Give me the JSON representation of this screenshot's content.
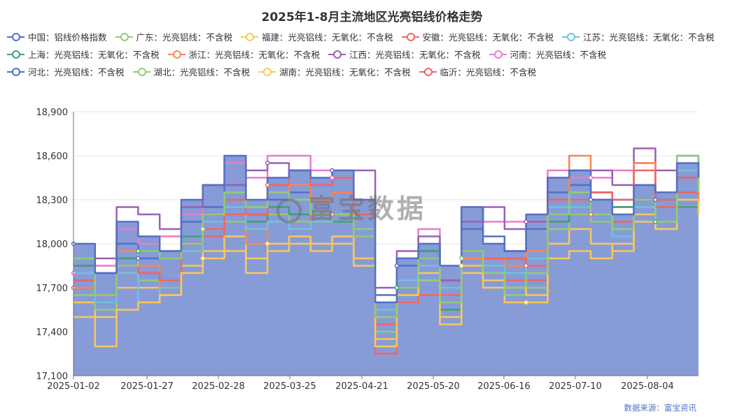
{
  "chart_data": {
    "type": "line",
    "title": "2025年1-8月主流地区光亮铝线价格走势",
    "source": "数据来源：富宝资讯",
    "watermark": "富宝数据",
    "ylim": [
      17100,
      18900
    ],
    "yticks": [
      17100,
      17400,
      17700,
      18000,
      18300,
      18600,
      18900
    ],
    "ytick_labels": [
      "17,100",
      "17,400",
      "17,700",
      "18,000",
      "18,300",
      "18,600",
      "18,900"
    ],
    "xtick_labels": [
      "2025-01-02",
      "2025-01-27",
      "2025-02-28",
      "2025-03-25",
      "2025-04-21",
      "2025-05-20",
      "2025-06-16",
      "2025-07-10",
      "2025-08-04"
    ],
    "legend_position": "top",
    "grid": true,
    "n_points": 30,
    "series": [
      {
        "name": "中国：铝线价格指数",
        "color": "#5470c6",
        "area": true,
        "values": [
          18000,
          17800,
          18150,
          18050,
          17950,
          18300,
          18400,
          18600,
          18300,
          18450,
          18500,
          18450,
          18500,
          18300,
          17600,
          17900,
          18000,
          17850,
          18250,
          18000,
          17950,
          18200,
          18450,
          18500,
          18300,
          18200,
          18400,
          18350,
          18550,
          18450
        ]
      },
      {
        "name": "广东：光亮铝线：不含税",
        "color": "#91cc75",
        "values": [
          17900,
          17650,
          17850,
          17950,
          17900,
          18000,
          18200,
          18350,
          18250,
          18350,
          18300,
          18200,
          18200,
          18100,
          17500,
          17700,
          17900,
          17600,
          17950,
          17800,
          17700,
          17800,
          18200,
          18350,
          18200,
          18100,
          18300,
          18150,
          18600,
          18350
        ]
      },
      {
        "name": "福建：光亮铝线：无氧化：不含税",
        "color": "#fac858",
        "values": [
          17500,
          17300,
          17550,
          17600,
          17650,
          17800,
          17900,
          17950,
          17800,
          17950,
          18000,
          17950,
          18000,
          17850,
          17300,
          17650,
          17800,
          17500,
          17850,
          17750,
          17700,
          17650,
          17900,
          17950,
          17900,
          18000,
          18150,
          18100,
          18300,
          18200
        ]
      },
      {
        "name": "安徽：光亮铝线：无氧化：不含税",
        "color": "#ee6666",
        "values": [
          17750,
          17650,
          17850,
          17800,
          17750,
          18000,
          18100,
          18300,
          18200,
          18400,
          18500,
          18400,
          18450,
          18200,
          17250,
          17600,
          17650,
          17650,
          17850,
          17900,
          17900,
          17850,
          18300,
          18300,
          18350,
          18300,
          18500,
          18300,
          18450,
          18500
        ]
      },
      {
        "name": "江苏：光亮铝线：无氧化：不含税",
        "color": "#73c0de",
        "values": [
          17800,
          17600,
          17800,
          17600,
          17700,
          17950,
          18150,
          18250,
          18100,
          18150,
          18100,
          18150,
          18200,
          18100,
          17550,
          17750,
          17850,
          17700,
          17950,
          17850,
          17800,
          17900,
          18250,
          18250,
          18200,
          18050,
          18250,
          18150,
          18500,
          18400
        ]
      },
      {
        "name": "上海：光亮铝线：无氧化：不含税",
        "color": "#3ba272",
        "values": [
          17850,
          17600,
          17900,
          17950,
          17950,
          18050,
          18200,
          18300,
          18150,
          18250,
          18200,
          18200,
          18150,
          18100,
          17550,
          17700,
          17950,
          17550,
          17950,
          17850,
          17800,
          17900,
          18150,
          18250,
          18300,
          18250,
          18300,
          18150,
          18250,
          18300
        ]
      },
      {
        "name": "浙江：光亮铝线：无氧化：不含税",
        "color": "#fc8452",
        "values": [
          17700,
          17650,
          17950,
          17850,
          17700,
          18000,
          18100,
          18300,
          18000,
          18350,
          18400,
          18300,
          18350,
          18200,
          17300,
          17600,
          17650,
          17600,
          17900,
          17900,
          17850,
          17950,
          18300,
          18600,
          18300,
          18250,
          18550,
          18350,
          18500,
          18300
        ]
      },
      {
        "name": "江西：光亮铝线：无氧化：不含税",
        "color": "#9a60b4",
        "values": [
          17850,
          17900,
          18250,
          18200,
          18100,
          18250,
          18400,
          18400,
          18500,
          18550,
          18500,
          18400,
          18500,
          18500,
          17700,
          17950,
          18050,
          17750,
          18150,
          18250,
          18100,
          18150,
          18450,
          18500,
          18500,
          18400,
          18650,
          18500,
          18600,
          18550
        ]
      },
      {
        "name": "河南：光亮铝线：不含税",
        "color": "#ea7ccc",
        "values": [
          17800,
          17850,
          18100,
          18000,
          18050,
          18200,
          18400,
          18550,
          18450,
          18600,
          18600,
          18500,
          18450,
          18300,
          17600,
          17900,
          18100,
          17650,
          18250,
          18150,
          18150,
          18150,
          18500,
          18450,
          18450,
          18500,
          18550,
          18350,
          18500,
          18450
        ]
      },
      {
        "name": "河北：光亮铝线：不含税",
        "color": "#5470c6",
        "values": [
          17750,
          17800,
          18000,
          17900,
          17900,
          18150,
          18250,
          18400,
          18200,
          18300,
          18350,
          18300,
          18350,
          18200,
          17650,
          17850,
          17950,
          17750,
          18100,
          18050,
          17950,
          18100,
          18350,
          18400,
          18350,
          18300,
          18400,
          18300,
          18450,
          18400
        ]
      },
      {
        "name": "湖北：光亮铝线：不含税",
        "color": "#91cc75",
        "values": [
          17650,
          17550,
          17800,
          17750,
          17750,
          17950,
          18100,
          18150,
          18100,
          18200,
          18150,
          18150,
          18150,
          18050,
          17400,
          17650,
          17750,
          17550,
          17900,
          17800,
          17650,
          17700,
          18100,
          18200,
          18150,
          18100,
          18250,
          18100,
          18300,
          18250
        ]
      },
      {
        "name": "湖南：光亮铝线：无氧化：不含税",
        "color": "#fac858",
        "values": [
          17600,
          17500,
          17700,
          17700,
          17650,
          17850,
          17950,
          18050,
          17900,
          18000,
          18050,
          18000,
          18050,
          17900,
          17350,
          17600,
          17750,
          17450,
          17800,
          17700,
          17600,
          17600,
          18000,
          18100,
          18000,
          17950,
          18200,
          18100,
          18250,
          18200
        ]
      },
      {
        "name": "临沂：光亮铝线：不含税",
        "color": "#ee6666",
        "values": [
          17700,
          17600,
          17800,
          17800,
          17700,
          17950,
          18050,
          18200,
          18100,
          18200,
          18200,
          18150,
          18200,
          18050,
          17450,
          17650,
          17750,
          17600,
          17850,
          17800,
          17750,
          17750,
          18150,
          18200,
          18200,
          18150,
          18300,
          18250,
          18350,
          18300
        ]
      }
    ]
  }
}
